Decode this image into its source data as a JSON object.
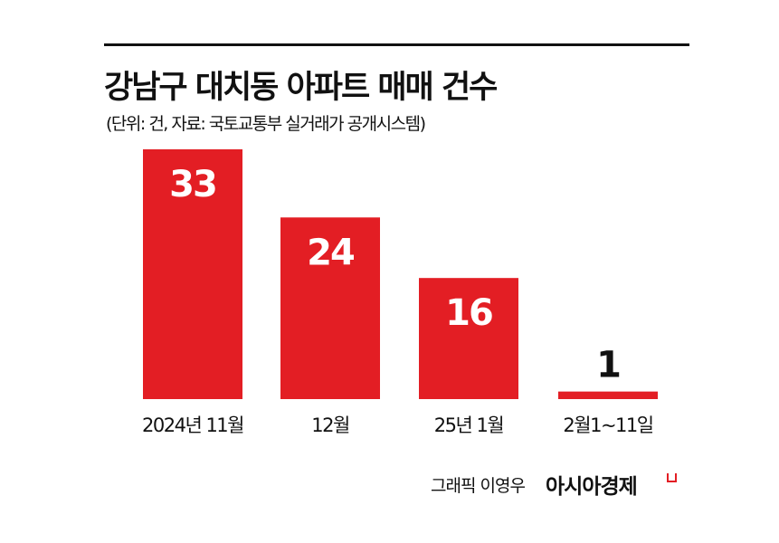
{
  "chart_data": {
    "type": "bar",
    "title": "강남구 대치동 아파트 매매 건수",
    "subtitle": "(단위: 건, 자료: 국토교통부 실거래가 공개시스템)",
    "categories": [
      "2024년 11월",
      "12월",
      "25년 1월",
      "2월1~11일"
    ],
    "values": [
      33,
      24,
      16,
      1
    ],
    "value_labels": [
      "33",
      "24",
      "16",
      "1"
    ],
    "xlabel": "",
    "ylabel": "",
    "ylim": [
      0,
      33
    ],
    "grid": false,
    "bar_color": "#e31e24"
  },
  "credit": "그래픽 이영우",
  "brand": "아시아경제"
}
